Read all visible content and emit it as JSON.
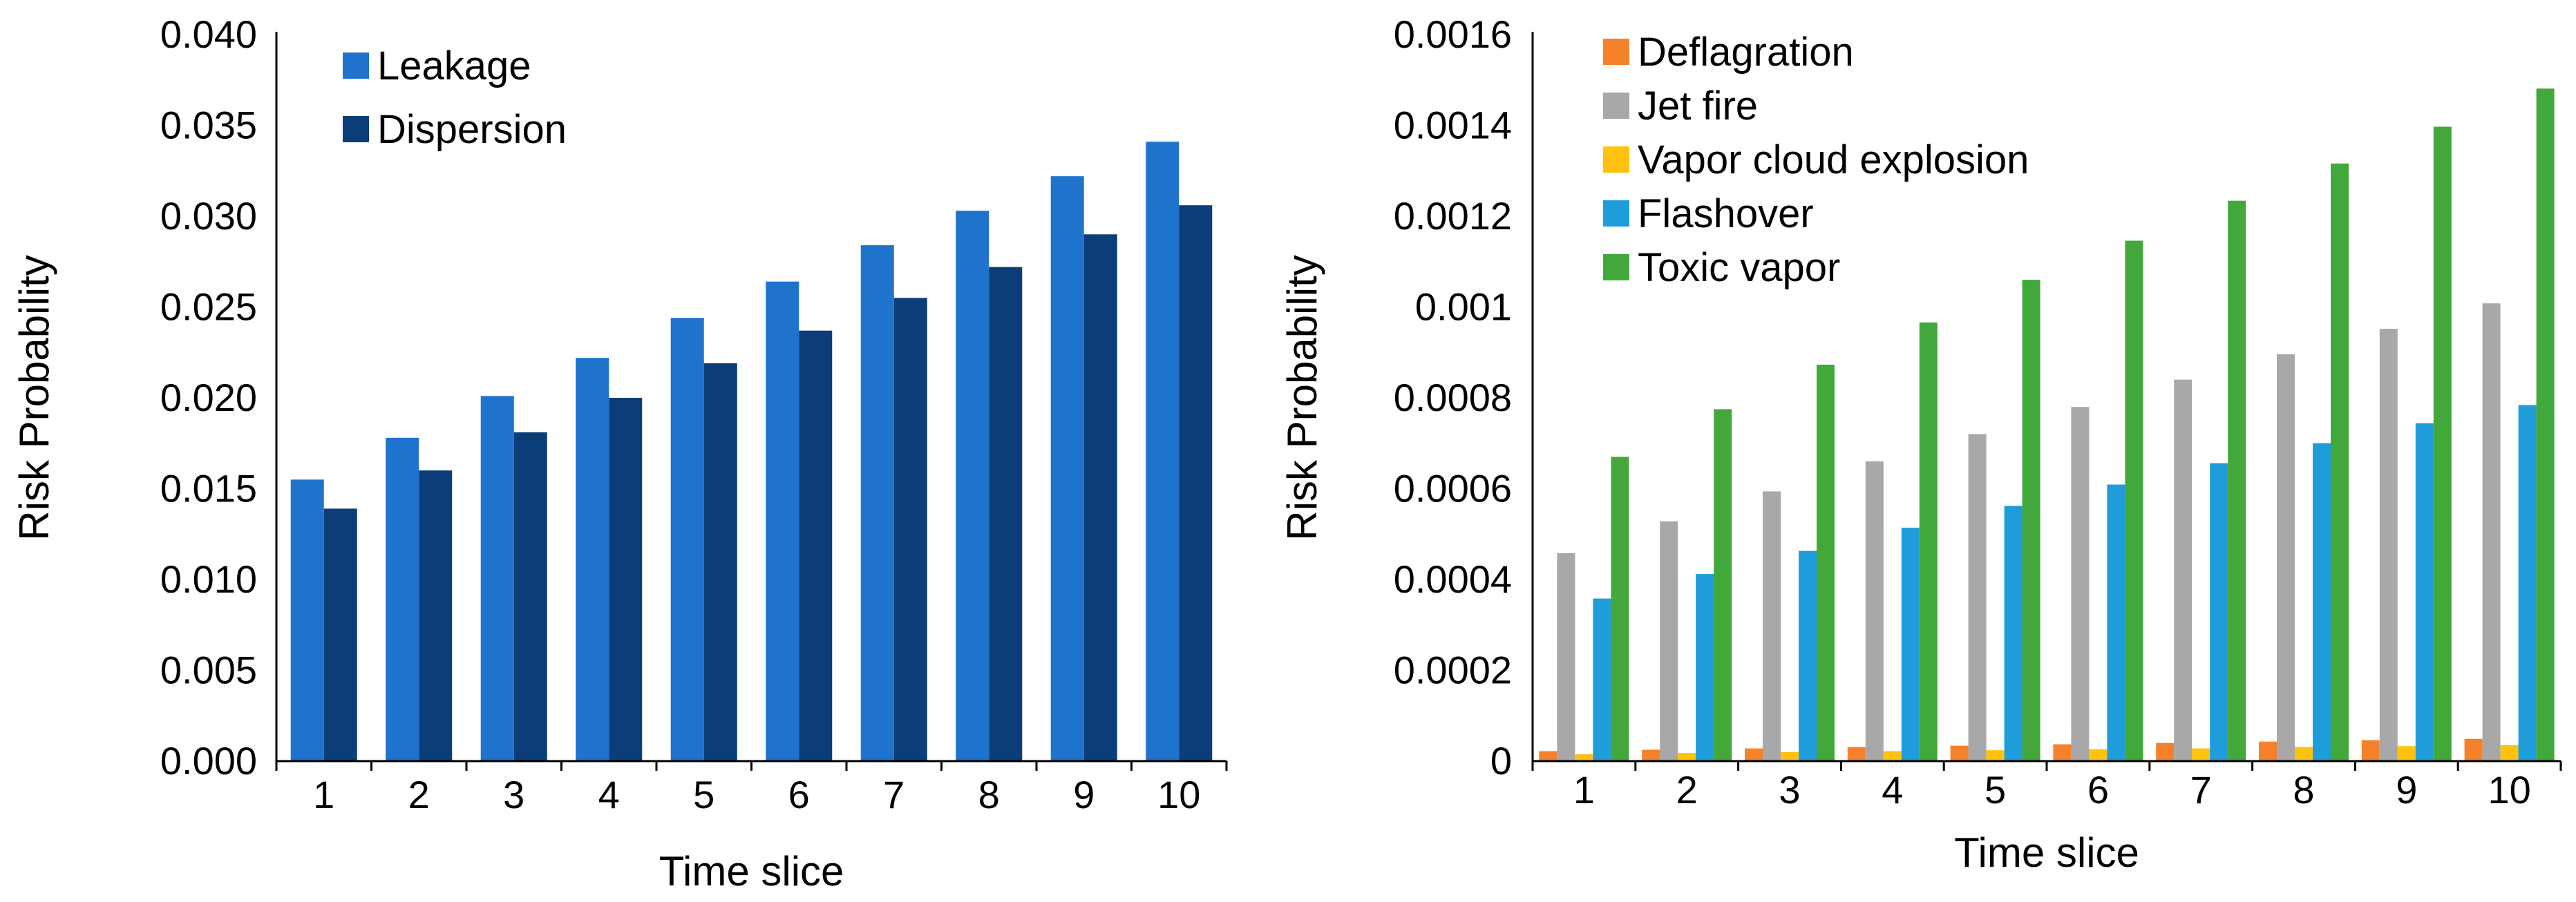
{
  "chart_data": [
    {
      "type": "bar",
      "title": "",
      "xlabel": "Time slice",
      "ylabel": "Risk Probability",
      "ylim": [
        0,
        0.04
      ],
      "yticks": [
        "0.000",
        "0.005",
        "0.010",
        "0.015",
        "0.020",
        "0.025",
        "0.030",
        "0.035",
        "0.040"
      ],
      "categories": [
        "1",
        "2",
        "3",
        "4",
        "5",
        "6",
        "7",
        "8",
        "9",
        "10"
      ],
      "legend_position": "top-left",
      "series": [
        {
          "name": "Leakage",
          "color": "#1f73cc",
          "values": [
            0.0155,
            0.0178,
            0.0201,
            0.0222,
            0.0244,
            0.0264,
            0.0284,
            0.0303,
            0.0322,
            0.0341
          ]
        },
        {
          "name": "Dispersion",
          "color": "#0b3d78",
          "values": [
            0.0139,
            0.016,
            0.0181,
            0.02,
            0.0219,
            0.0237,
            0.0255,
            0.0272,
            0.029,
            0.0306
          ]
        }
      ]
    },
    {
      "type": "bar",
      "title": "",
      "xlabel": "Time slice",
      "ylabel": "Risk Probability",
      "ylim": [
        0,
        0.0016
      ],
      "yticks": [
        "0",
        "0.0002",
        "0.0004",
        "0.0006",
        "0.0008",
        "0.001",
        "0.0012",
        "0.0014",
        "0.0016"
      ],
      "categories": [
        "1",
        "2",
        "3",
        "4",
        "5",
        "6",
        "7",
        "8",
        "9",
        "10"
      ],
      "legend_position": "top-left",
      "series": [
        {
          "name": "Deflagration",
          "color": "#f5822a",
          "values": [
            2.2e-05,
            2.5e-05,
            2.8e-05,
            3.1e-05,
            3.4e-05,
            3.7e-05,
            4e-05,
            4.3e-05,
            4.6e-05,
            4.9e-05
          ]
        },
        {
          "name": "Jet fire",
          "color": "#a8a8a8",
          "values": [
            0.000458,
            0.000528,
            0.000594,
            0.00066,
            0.00072,
            0.00078,
            0.00084,
            0.000896,
            0.000952,
            0.001008
          ]
        },
        {
          "name": "Vapor cloud explosion",
          "color": "#ffc20e",
          "values": [
            1.5e-05,
            1.8e-05,
            2e-05,
            2.2e-05,
            2.4e-05,
            2.6e-05,
            2.8e-05,
            3.1e-05,
            3.3e-05,
            3.5e-05
          ]
        },
        {
          "name": "Flashover",
          "color": "#1f9ddb",
          "values": [
            0.000358,
            0.000412,
            0.000463,
            0.000514,
            0.000562,
            0.000609,
            0.000656,
            0.0007,
            0.000744,
            0.000784
          ]
        },
        {
          "name": "Toxic vapor",
          "color": "#43a83b",
          "values": [
            0.00067,
            0.000775,
            0.000873,
            0.000966,
            0.00106,
            0.001146,
            0.001234,
            0.001316,
            0.001397,
            0.001481
          ]
        }
      ]
    }
  ]
}
